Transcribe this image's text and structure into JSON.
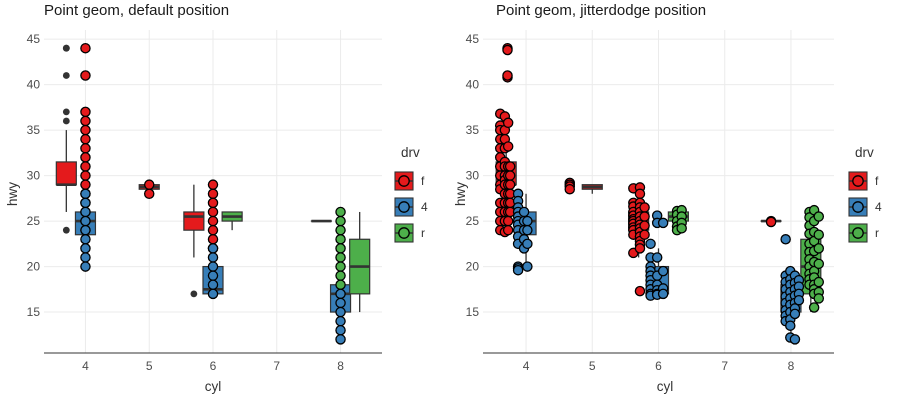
{
  "chart_data": [
    {
      "id": "left",
      "type": "box+point",
      "title": "Point geom, default position",
      "xlabel": "cyl",
      "ylabel": "hwy",
      "xlim": [
        3.35,
        8.65
      ],
      "ylim": [
        10.5,
        46
      ],
      "xticks": [
        4,
        5,
        6,
        7,
        8
      ],
      "yticks": [
        15,
        20,
        25,
        30,
        35,
        40,
        45
      ],
      "grid": true,
      "legend": {
        "title": "drv",
        "position": "right",
        "entries": [
          "f",
          "4",
          "r"
        ]
      },
      "colors": {
        "f": "#e41a1c",
        "4": "#377eb8",
        "r": "#4daf4a",
        "box_outline": "#333333",
        "outlier": "#333333"
      },
      "boxes": [
        {
          "cyl": 4,
          "drv": "f",
          "offset": -0.3,
          "q1": 29,
          "median": 29,
          "q3": 31.5,
          "whisker_low": 26,
          "whisker_high": 35,
          "outliers": [
            44,
            44,
            41,
            37,
            36,
            24
          ]
        },
        {
          "cyl": 4,
          "drv": "4",
          "offset": 0,
          "q1": 23.5,
          "median": 25,
          "q3": 26,
          "whisker_low": 20,
          "whisker_high": 28,
          "outliers": []
        },
        {
          "cyl": 5,
          "drv": "f",
          "offset": 0,
          "q1": 28.5,
          "median": 28.75,
          "q3": 29,
          "whisker_low": 28,
          "whisker_high": 29,
          "outliers": []
        },
        {
          "cyl": 6,
          "drv": "f",
          "offset": -0.3,
          "q1": 24,
          "median": 25.5,
          "q3": 26,
          "whisker_low": 21,
          "whisker_high": 29,
          "outliers": [
            17
          ]
        },
        {
          "cyl": 6,
          "drv": "4",
          "offset": 0,
          "q1": 17,
          "median": 17.5,
          "q3": 20,
          "whisker_low": 17,
          "whisker_high": 22,
          "outliers": []
        },
        {
          "cyl": 6,
          "drv": "r",
          "offset": 0.3,
          "q1": 25,
          "median": 25.5,
          "q3": 26,
          "whisker_low": 24,
          "whisker_high": 26,
          "outliers": []
        },
        {
          "cyl": 8,
          "drv": "f",
          "offset": -0.3,
          "q1": 25,
          "median": 25,
          "q3": 25,
          "whisker_low": 25,
          "whisker_high": 25,
          "outliers": []
        },
        {
          "cyl": 8,
          "drv": "4",
          "offset": 0,
          "q1": 15,
          "median": 17,
          "q3": 18,
          "whisker_low": 12,
          "whisker_high": 19,
          "outliers": []
        },
        {
          "cyl": 8,
          "drv": "r",
          "offset": 0.3,
          "q1": 17,
          "median": 20,
          "q3": 23,
          "whisker_low": 15,
          "whisker_high": 26,
          "outliers": []
        }
      ],
      "points": [
        {
          "x": 4,
          "drv": "f",
          "hwy": [
            44,
            41,
            37,
            36,
            35,
            34,
            33,
            32,
            31,
            30,
            29,
            28,
            27,
            26,
            25,
            24
          ]
        },
        {
          "x": 4,
          "drv": "4",
          "hwy": [
            28,
            27,
            26,
            25,
            24,
            23,
            22,
            21,
            20
          ]
        },
        {
          "x": 5,
          "drv": "f",
          "hwy": [
            29,
            28
          ]
        },
        {
          "x": 6,
          "drv": "f",
          "hwy": [
            29,
            28,
            27,
            26,
            25,
            24,
            23,
            22
          ]
        },
        {
          "x": 6,
          "drv": "4",
          "hwy": [
            22,
            21,
            20,
            19,
            18,
            17
          ]
        },
        {
          "x": 8,
          "drv": "r",
          "hwy": [
            26,
            25,
            24,
            23,
            22,
            21,
            20,
            19,
            18
          ]
        },
        {
          "x": 8,
          "drv": "4",
          "hwy": [
            17,
            16,
            15,
            14,
            13,
            12
          ]
        }
      ]
    },
    {
      "id": "right",
      "type": "box+point",
      "title": "Point geom, jitterdodge position",
      "xlabel": "cyl",
      "ylabel": "hwy",
      "xlim": [
        3.35,
        8.65
      ],
      "ylim": [
        10.5,
        46
      ],
      "xticks": [
        4,
        5,
        6,
        7,
        8
      ],
      "yticks": [
        15,
        20,
        25,
        30,
        35,
        40,
        45
      ],
      "grid": true,
      "legend": {
        "title": "drv",
        "position": "right",
        "entries": [
          "f",
          "4",
          "r"
        ]
      },
      "colors": {
        "f": "#e41a1c",
        "4": "#377eb8",
        "r": "#4daf4a",
        "box_outline": "#333333"
      },
      "boxes": [
        {
          "cyl": 4,
          "drv": "f",
          "offset": -0.3,
          "q1": 29,
          "median": 29,
          "q3": 31.5,
          "whisker_low": 26,
          "whisker_high": 35,
          "outliers": []
        },
        {
          "cyl": 4,
          "drv": "4",
          "offset": 0,
          "q1": 23.5,
          "median": 25,
          "q3": 26,
          "whisker_low": 20,
          "whisker_high": 28,
          "outliers": []
        },
        {
          "cyl": 5,
          "drv": "f",
          "offset": 0,
          "q1": 28.5,
          "median": 28.75,
          "q3": 29,
          "whisker_low": 28,
          "whisker_high": 29,
          "outliers": []
        },
        {
          "cyl": 6,
          "drv": "f",
          "offset": -0.3,
          "q1": 24,
          "median": 25.5,
          "q3": 26,
          "whisker_low": 21,
          "whisker_high": 29,
          "outliers": []
        },
        {
          "cyl": 6,
          "drv": "4",
          "offset": 0,
          "q1": 17,
          "median": 17.5,
          "q3": 20,
          "whisker_low": 17,
          "whisker_high": 22,
          "outliers": []
        },
        {
          "cyl": 6,
          "drv": "r",
          "offset": 0.3,
          "q1": 25,
          "median": 25.5,
          "q3": 26,
          "whisker_low": 24,
          "whisker_high": 26,
          "outliers": []
        },
        {
          "cyl": 8,
          "drv": "f",
          "offset": -0.3,
          "q1": 25,
          "median": 25,
          "q3": 25,
          "whisker_low": 25,
          "whisker_high": 25,
          "outliers": []
        },
        {
          "cyl": 8,
          "drv": "4",
          "offset": 0,
          "q1": 15,
          "median": 17,
          "q3": 18,
          "whisker_low": 12,
          "whisker_high": 19,
          "outliers": []
        },
        {
          "cyl": 8,
          "drv": "r",
          "offset": 0.3,
          "q1": 17,
          "median": 20,
          "q3": 23,
          "whisker_low": 15,
          "whisker_high": 26,
          "outliers": []
        }
      ],
      "points": [
        {
          "x": 3.72,
          "drv": "f",
          "hwy": [
            44,
            43.8,
            40.8,
            41
          ]
        },
        {
          "x": 3.61,
          "drv": "f",
          "hwy": [
            36.8,
            35.5,
            35,
            34,
            33,
            32,
            31,
            30,
            29,
            28.5,
            27,
            26,
            25,
            24
          ]
        },
        {
          "x": 3.68,
          "drv": "f",
          "hwy": [
            36.5,
            35,
            34,
            33,
            31.5,
            31,
            30,
            29.5,
            29,
            28,
            27,
            26,
            25,
            23.8
          ]
        },
        {
          "x": 3.73,
          "drv": "f",
          "hwy": [
            35.8,
            33.2,
            31,
            30,
            29,
            28,
            27,
            26,
            25,
            24
          ]
        },
        {
          "x": 3.76,
          "drv": "f",
          "hwy": [
            31,
            30,
            29,
            28,
            27,
            26
          ]
        },
        {
          "x": 3.88,
          "drv": "4",
          "hwy": [
            28,
            27.2,
            26.5,
            26,
            25.5,
            25,
            24.6,
            24,
            23.3,
            22.5,
            20,
            19.8,
            19.6
          ]
        },
        {
          "x": 3.97,
          "drv": "4",
          "hwy": [
            26,
            25,
            24,
            23,
            22
          ]
        },
        {
          "x": 4.02,
          "drv": "4",
          "hwy": [
            25,
            24,
            22.5,
            20
          ]
        },
        {
          "x": 4.66,
          "drv": "f",
          "hwy": [
            29.2,
            29,
            28.8,
            28.5
          ]
        },
        {
          "x": 5.62,
          "drv": "f",
          "hwy": [
            28.6,
            27,
            26.6,
            26,
            25.6,
            25.2,
            25,
            24.7,
            24.3,
            24,
            23.5,
            21.5
          ]
        },
        {
          "x": 5.72,
          "drv": "f",
          "hwy": [
            28.7,
            28,
            27,
            26.5,
            26,
            25.5,
            25,
            24.6,
            24.2,
            23.8,
            23.3,
            22.8,
            22.4,
            22,
            17.3
          ]
        },
        {
          "x": 5.79,
          "drv": "f",
          "hwy": [
            26.5,
            25.5,
            24.5,
            23.5
          ]
        },
        {
          "x": 5.88,
          "drv": "4",
          "hwy": [
            22.5,
            21,
            20,
            19.5,
            19,
            18.5,
            18,
            17.5,
            17,
            16.8
          ]
        },
        {
          "x": 5.98,
          "drv": "4",
          "hwy": [
            25.6,
            24.8,
            21,
            19,
            18,
            17.4,
            17,
            16.9
          ]
        },
        {
          "x": 6.07,
          "drv": "4",
          "hwy": [
            24.8,
            19.5,
            17.6,
            17
          ]
        },
        {
          "x": 6.28,
          "drv": "r",
          "hwy": [
            26.1,
            25.7,
            25,
            24.4,
            24
          ]
        },
        {
          "x": 6.35,
          "drv": "r",
          "hwy": [
            26.2,
            25.5,
            24.8,
            24.2
          ]
        },
        {
          "x": 7.7,
          "drv": "f",
          "hwy": [
            25,
            24.9
          ]
        },
        {
          "x": 7.92,
          "drv": "4",
          "hwy": [
            19,
            18.3,
            17.5,
            16.7,
            16,
            15.2,
            14.6,
            14,
            23
          ]
        },
        {
          "x": 7.99,
          "drv": "4",
          "hwy": [
            19.5,
            18.6,
            18,
            17.2,
            16.5,
            15.8,
            15,
            14.2,
            13.5,
            12.2
          ]
        },
        {
          "x": 8.06,
          "drv": "4",
          "hwy": [
            19,
            18.2,
            17.5,
            16.8,
            16,
            15.4,
            14.8,
            12
          ]
        },
        {
          "x": 8.12,
          "drv": "4",
          "hwy": [
            18.5,
            17.8,
            17,
            16.3
          ]
        },
        {
          "x": 8.28,
          "drv": "r",
          "hwy": [
            26,
            25.4,
            24.5,
            23.6,
            22.5,
            21.6,
            20.8,
            20,
            19.2,
            18.6,
            18
          ]
        },
        {
          "x": 8.35,
          "drv": "r",
          "hwy": [
            26.2,
            25,
            23.8,
            22.8,
            21.7,
            20.5,
            19.5,
            18.8,
            18,
            17.5,
            17,
            15.5
          ]
        },
        {
          "x": 8.42,
          "drv": "r",
          "hwy": [
            25.5,
            23.5,
            22,
            20.3,
            18.3,
            17.2,
            16.5
          ]
        }
      ]
    }
  ]
}
